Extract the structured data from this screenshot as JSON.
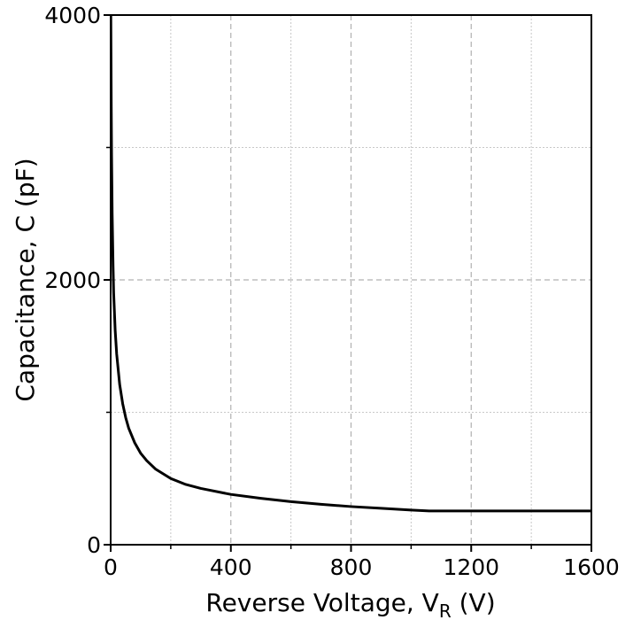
{
  "chart_data": {
    "type": "line",
    "title": "",
    "xlabel": "Reverse Voltage, V",
    "xlabel_sub": "R",
    "xlabel_unit": " (V)",
    "ylabel": "Capacitance, C (pF)",
    "xlim": [
      0,
      1600
    ],
    "ylim": [
      0,
      4000
    ],
    "xticks": [
      0,
      400,
      800,
      1200,
      1600
    ],
    "xtick_labels": [
      "0",
      "400",
      "800",
      "1200",
      "1600"
    ],
    "yticks": [
      0,
      2000,
      4000
    ],
    "ytick_labels": [
      "0",
      "2000",
      "4000"
    ],
    "x_minor_ticks": [
      200,
      600,
      1000,
      1400
    ],
    "y_minor_ticks": [
      1000,
      3000
    ],
    "grid": true,
    "line_color": "#000000",
    "series": [
      {
        "x": [
          0.5,
          1,
          2,
          3,
          5,
          8,
          10,
          15,
          20,
          30,
          40,
          50,
          60,
          80,
          100,
          120,
          150,
          200,
          250,
          300,
          400,
          500,
          600,
          700,
          800,
          900,
          1000,
          1060,
          1100,
          1200,
          1300,
          1400,
          1500,
          1600
        ],
        "values": [
          4000,
          3750,
          3300,
          2950,
          2500,
          2100,
          1900,
          1620,
          1440,
          1210,
          1065,
          960,
          880,
          770,
          690,
          635,
          570,
          500,
          455,
          425,
          380,
          350,
          325,
          305,
          288,
          275,
          262,
          255,
          255,
          255,
          255,
          255,
          255,
          255
        ]
      }
    ]
  }
}
